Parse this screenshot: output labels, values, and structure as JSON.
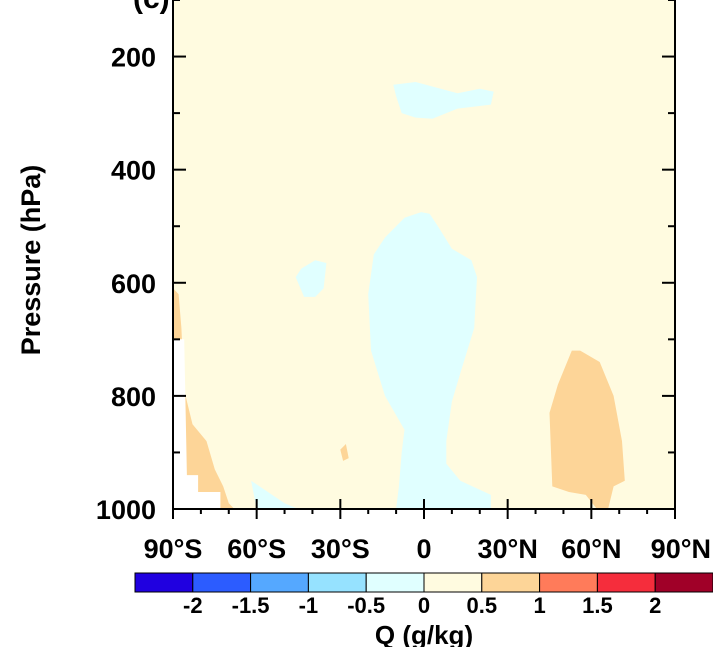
{
  "chart_data": {
    "type": "heatmap",
    "panel_label": "(c)",
    "ylabel": "Pressure (hPa)",
    "xlabel": "",
    "x_unit": "latitude",
    "xlim": [
      -90,
      90
    ],
    "ylim": [
      1000,
      100
    ],
    "x_ticks": [
      -90,
      -60,
      -30,
      0,
      30,
      60,
      90
    ],
    "x_tick_labels": [
      "90°S",
      "60°S",
      "30°S",
      "0",
      "30°N",
      "60°N",
      "90°N"
    ],
    "y_ticks": [
      200,
      400,
      600,
      800,
      1000
    ],
    "y_tick_labels": [
      "200",
      "400",
      "600",
      "800",
      "1000"
    ],
    "background_level": "0 to 0.5",
    "background_color": "#fffbe0",
    "colorbar": {
      "title": "Q (g/kg)",
      "levels": [
        "-2",
        "-1.5",
        "-1",
        "-0.5",
        "0",
        "0.5",
        "1",
        "1.5",
        "2"
      ],
      "colors": [
        "#2000e0",
        "#2c5cff",
        "#55a8ff",
        "#96e2ff",
        "#e0ffff",
        "#fffbe0",
        "#fdd598",
        "#ff7b5a",
        "#f52d3c",
        "#a00028"
      ]
    },
    "regions": [
      {
        "name": "upper-tropics-negative",
        "range": "-0.5 to 0",
        "color": "#e0ffff",
        "points": [
          [
            -11,
            250
          ],
          [
            -3,
            245
          ],
          [
            12,
            265
          ],
          [
            20,
            257
          ],
          [
            25,
            262
          ],
          [
            24,
            285
          ],
          [
            12,
            292
          ],
          [
            3,
            310
          ],
          [
            -3,
            308
          ],
          [
            -8,
            300
          ],
          [
            -10,
            270
          ]
        ]
      },
      {
        "name": "central-column-negative",
        "range": "-0.5 to 0",
        "color": "#e0ffff",
        "points": [
          [
            -1,
            475
          ],
          [
            2,
            478
          ],
          [
            5,
            500
          ],
          [
            10,
            540
          ],
          [
            17,
            560
          ],
          [
            19,
            590
          ],
          [
            18,
            680
          ],
          [
            13,
            760
          ],
          [
            10,
            810
          ],
          [
            8,
            880
          ],
          [
            8,
            920
          ],
          [
            13,
            950
          ],
          [
            24,
            975
          ],
          [
            24,
            1000
          ],
          [
            -10,
            1000
          ],
          [
            -9,
            960
          ],
          [
            -8,
            900
          ],
          [
            -7,
            860
          ],
          [
            -14,
            800
          ],
          [
            -19,
            720
          ],
          [
            -20,
            620
          ],
          [
            -18,
            550
          ],
          [
            -14,
            520
          ],
          [
            -7,
            485
          ]
        ]
      },
      {
        "name": "southern-subtropics-negative",
        "range": "-0.5 to 0",
        "color": "#e0ffff",
        "points": [
          [
            -39,
            560
          ],
          [
            -35,
            565
          ],
          [
            -36,
            610
          ],
          [
            -39,
            625
          ],
          [
            -43,
            625
          ],
          [
            -46,
            590
          ],
          [
            -44,
            575
          ]
        ]
      },
      {
        "name": "southern-surface-negative",
        "range": "-0.5 to 0",
        "color": "#e0ffff",
        "points": [
          [
            -62,
            950
          ],
          [
            -50,
            990
          ],
          [
            -45,
            1000
          ],
          [
            -60,
            1000
          ]
        ]
      },
      {
        "name": "northern-high-latitude-positive",
        "range": "0.5 to 1",
        "color": "#fdd598",
        "points": [
          [
            53,
            720
          ],
          [
            56,
            720
          ],
          [
            63,
            740
          ],
          [
            68,
            800
          ],
          [
            71,
            880
          ],
          [
            72,
            950
          ],
          [
            68,
            960
          ],
          [
            66,
            1000
          ],
          [
            62,
            1000
          ],
          [
            58,
            975
          ],
          [
            52,
            970
          ],
          [
            46,
            960
          ],
          [
            45,
            830
          ],
          [
            48,
            780
          ]
        ]
      },
      {
        "name": "southern-high-latitude-positive",
        "range": "0.5 to 1",
        "color": "#fdd598",
        "points": [
          [
            -90,
            610
          ],
          [
            -88,
            620
          ],
          [
            -87,
            680
          ],
          [
            -86,
            790
          ],
          [
            -83,
            850
          ],
          [
            -78,
            880
          ],
          [
            -75,
            930
          ],
          [
            -72,
            960
          ],
          [
            -70,
            990
          ],
          [
            -68,
            1000
          ],
          [
            -90,
            1000
          ]
        ]
      },
      {
        "name": "southern-subtropics-positive",
        "range": "0.5 to 1",
        "color": "#fdd598",
        "points": [
          [
            -28,
            885
          ],
          [
            -27,
            910
          ],
          [
            -29,
            915
          ],
          [
            -30,
            895
          ]
        ]
      },
      {
        "name": "missing-data-surface",
        "range": "",
        "color": "#ffffff",
        "points": [
          [
            -90,
            700
          ],
          [
            -86,
            700
          ],
          [
            -85,
            940
          ],
          [
            -81,
            940
          ],
          [
            -81,
            970
          ],
          [
            -73,
            970
          ],
          [
            -73,
            1000
          ],
          [
            -90,
            1000
          ]
        ]
      }
    ]
  }
}
